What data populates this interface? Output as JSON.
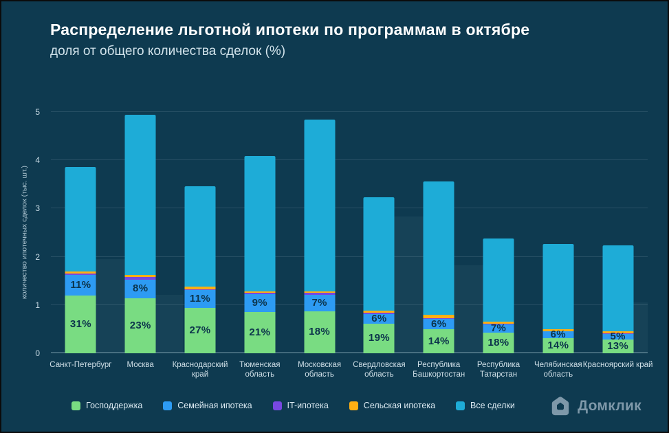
{
  "chart_data": {
    "type": "bar",
    "stacked": true,
    "title": "Распределение льготной ипотеки по программам в октябре",
    "subtitle": "доля от общего количества сделок (%)",
    "ylabel": "количество ипотечных сделок (тыс. шт.)",
    "ylim": [
      0,
      5
    ],
    "yticks": [
      0,
      1,
      2,
      3,
      4,
      5
    ],
    "grid": true,
    "legend_position": "bottom",
    "series": [
      {
        "key": "gos",
        "name": "Господдержка",
        "color": "#79DC82"
      },
      {
        "key": "sem",
        "name": "Семейная ипотека",
        "color": "#2D9BF3"
      },
      {
        "key": "it",
        "name": "IT-ипотека",
        "color": "#7748E0"
      },
      {
        "key": "rural",
        "name": "Сельская ипотека",
        "color": "#FFAF13"
      },
      {
        "key": "all",
        "name": "Все сделки",
        "color": "#1EACD7"
      }
    ],
    "regions": [
      {
        "name": "Санкт-Петербург",
        "total_thousand": 3.86,
        "pct": {
          "gos": 31,
          "sem": 11,
          "it": 1,
          "rural": 1
        },
        "labels": {
          "gos": "31%",
          "sem": "11%"
        }
      },
      {
        "name": "Москва",
        "total_thousand": 4.94,
        "pct": {
          "gos": 23,
          "sem": 8,
          "it": 1,
          "rural": 1
        },
        "labels": {
          "gos": "23%",
          "sem": "8%"
        }
      },
      {
        "name": "Краснодарский край",
        "total_thousand": 3.46,
        "pct": {
          "gos": 27,
          "sem": 11,
          "it": 0.5,
          "rural": 1.5
        },
        "labels": {
          "gos": "27%",
          "sem": "11%"
        }
      },
      {
        "name": "Тюменская область",
        "total_thousand": 4.09,
        "pct": {
          "gos": 21,
          "sem": 9,
          "it": 0.5,
          "rural": 1
        },
        "labels": {
          "gos": "21%",
          "sem": "9%"
        }
      },
      {
        "name": "Московская область",
        "total_thousand": 4.84,
        "pct": {
          "gos": 18,
          "sem": 7,
          "it": 1,
          "rural": 0.5
        },
        "labels": {
          "gos": "18%",
          "sem": "7%"
        }
      },
      {
        "name": "Свердловская область",
        "total_thousand": 3.23,
        "pct": {
          "gos": 19,
          "sem": 6,
          "it": 1,
          "rural": 1.5
        },
        "labels": {
          "gos": "19%",
          "sem": "6%"
        }
      },
      {
        "name": "Республика Башкортостан",
        "total_thousand": 3.56,
        "pct": {
          "gos": 14,
          "sem": 6,
          "it": 0.5,
          "rural": 2
        },
        "labels": {
          "gos": "14%",
          "sem": "6%"
        }
      },
      {
        "name": "Республика Татарстан",
        "total_thousand": 2.38,
        "pct": {
          "gos": 18,
          "sem": 7,
          "it": 0.5,
          "rural": 2
        },
        "labels": {
          "gos": "18%",
          "sem": "7%"
        }
      },
      {
        "name": "Челябинская область",
        "total_thousand": 2.26,
        "pct": {
          "gos": 14,
          "sem": 6,
          "it": 0.5,
          "rural": 1.5
        },
        "labels": {
          "gos": "14%",
          "sem": "6%"
        }
      },
      {
        "name": "Красноярский край",
        "total_thousand": 2.24,
        "pct": {
          "gos": 13,
          "sem": 5,
          "it": 0.5,
          "rural": 2
        },
        "labels": {
          "gos": "13%",
          "sem": "5%"
        }
      }
    ]
  },
  "colors": {
    "background": "#0E3A50",
    "grid": "rgba(214,234,244,0.13)",
    "axis_text": "#C8DAE4",
    "data_label": "#0C344B",
    "logo": "#7E98A9"
  },
  "logo": {
    "text": "Домклик"
  }
}
